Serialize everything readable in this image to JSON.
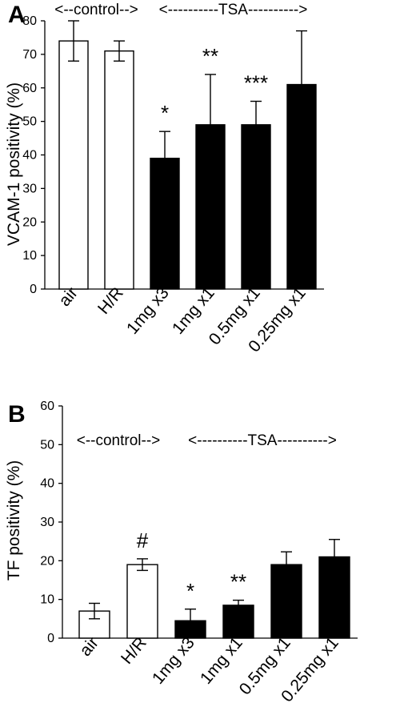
{
  "chart_data": [
    {
      "panel": "A",
      "type": "bar",
      "ylabel": "VCAM-1 positivity (%)",
      "ylim": [
        0,
        80
      ],
      "yticks": [
        "0",
        "10",
        "20",
        "30",
        "40",
        "50",
        "60",
        "70",
        "80"
      ],
      "categories": [
        "air",
        "H/R",
        "1mg x3",
        "1mg x1",
        "0.5mg x1",
        "0.25mg x1"
      ],
      "values": [
        74,
        71,
        39,
        49,
        49,
        61
      ],
      "errors": [
        6,
        3,
        8,
        15,
        7,
        16
      ],
      "error_style": [
        "both",
        "both",
        "up",
        "up",
        "up",
        "up"
      ],
      "bar_fill": [
        "#ffffff",
        "#ffffff",
        "#000000",
        "#000000",
        "#000000",
        "#000000"
      ],
      "annotations": [
        "",
        "",
        "*",
        "**",
        "***",
        ""
      ],
      "group_labels": [
        {
          "text": "<--control-->",
          "from": 0,
          "to": 1
        },
        {
          "text": "<----------TSA---------->",
          "from": 2,
          "to": 5
        }
      ]
    },
    {
      "panel": "B",
      "type": "bar",
      "ylabel": "TF positivity (%)",
      "ylim": [
        0,
        60
      ],
      "yticks": [
        "0",
        "10",
        "20",
        "30",
        "40",
        "50",
        "60"
      ],
      "categories": [
        "air",
        "H/R",
        "1mg x3",
        "1mg x1",
        "0.5mg x1",
        "0.25mg x1"
      ],
      "values": [
        7,
        19,
        4.5,
        8.5,
        19,
        21
      ],
      "errors": [
        2,
        1.5,
        3,
        1.3,
        3.3,
        4.5
      ],
      "error_style": [
        "both",
        "both",
        "up",
        "up",
        "up",
        "up"
      ],
      "bar_fill": [
        "#ffffff",
        "#ffffff",
        "#000000",
        "#000000",
        "#000000",
        "#000000"
      ],
      "annotations": [
        "",
        "#",
        "*",
        "**",
        "",
        ""
      ],
      "group_labels": [
        {
          "text": "<--control-->",
          "from": 0,
          "to": 1
        },
        {
          "text": "<----------TSA---------->",
          "from": 2,
          "to": 5
        }
      ]
    }
  ]
}
